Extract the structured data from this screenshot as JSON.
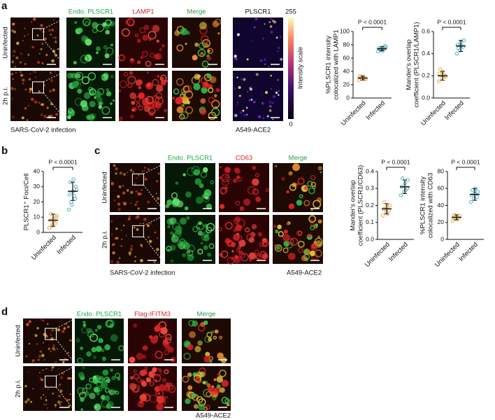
{
  "chart_data": [
    {
      "type": "dot",
      "ylabel": [
        "%PLSCR1 intensity",
        "colocalized with LAMP1"
      ],
      "categories": [
        "Uninfected",
        "Infected"
      ],
      "colors": [
        "#e8a33c",
        "#3ea9b9"
      ],
      "values": [
        30,
        74
      ],
      "errors": [
        3,
        3
      ],
      "points": [
        [
          27,
          29,
          30,
          31,
          32,
          28,
          33,
          30
        ],
        [
          70,
          72,
          74,
          75,
          76,
          78,
          73,
          71,
          77
        ]
      ],
      "annotation": "P < 0.0001",
      "ylim": [
        0,
        100
      ],
      "yticks": [
        0,
        20,
        40,
        60,
        80,
        100
      ]
    },
    {
      "type": "dot",
      "ylabel": [
        "Mander's overlap",
        "coefficient (PLSCR1/LAMP1)"
      ],
      "categories": [
        "Uninfected",
        "Infected"
      ],
      "colors": [
        "#e8a33c",
        "#3ea9b9"
      ],
      "values": [
        0.2,
        0.47
      ],
      "errors": [
        0.04,
        0.05
      ],
      "points": [
        [
          0.15,
          0.18,
          0.2,
          0.22,
          0.24,
          0.19,
          0.26,
          0.21
        ],
        [
          0.4,
          0.43,
          0.46,
          0.48,
          0.5,
          0.52,
          0.45,
          0.47
        ]
      ],
      "annotation": "P < 0.0001",
      "ylim": [
        0,
        0.6
      ],
      "yticks": [
        {
          "value": 0,
          "label": "0.0"
        },
        0.2,
        0.4,
        0.6
      ]
    },
    {
      "type": "dot",
      "ylabel": [
        "PLSCR1⁺ Foci/Cell"
      ],
      "categories": [
        "Uninfected",
        "Infected"
      ],
      "colors": [
        "#e8a33c",
        "#3ea9b9"
      ],
      "values": [
        8,
        27
      ],
      "errors": [
        4,
        6
      ],
      "points": [
        [
          3,
          5,
          6,
          8,
          9,
          10,
          12,
          7,
          11,
          4
        ],
        [
          15,
          18,
          22,
          25,
          27,
          30,
          33,
          35,
          28,
          20,
          24
        ]
      ],
      "annotation": "P < 0.0001",
      "ylim": [
        0,
        40
      ],
      "yticks": [
        0,
        10,
        20,
        30,
        40
      ]
    },
    {
      "type": "dot",
      "ylabel": [
        "Mander's overlap",
        "coefficient (PLSCR1/CD63)"
      ],
      "categories": [
        "Uninfected",
        "Infected"
      ],
      "colors": [
        "#e8a33c",
        "#3ea9b9"
      ],
      "values": [
        0.18,
        0.31
      ],
      "errors": [
        0.03,
        0.04
      ],
      "points": [
        [
          0.14,
          0.16,
          0.17,
          0.18,
          0.19,
          0.2,
          0.22,
          0.15
        ],
        [
          0.26,
          0.28,
          0.3,
          0.31,
          0.33,
          0.35,
          0.36,
          0.29
        ]
      ],
      "annotation": "P < 0.0001",
      "ylim": [
        0,
        0.4
      ],
      "yticks": [
        {
          "value": 0,
          "label": "0.0"
        },
        0.1,
        0.2,
        0.3,
        0.4
      ]
    },
    {
      "type": "dot",
      "ylabel": [
        "%PLSCR1 intensity",
        "colocalized with CD63"
      ],
      "categories": [
        "Uninfected",
        "Infected"
      ],
      "colors": [
        "#e8a33c",
        "#3ea9b9"
      ],
      "values": [
        26,
        53
      ],
      "errors": [
        3,
        7
      ],
      "points": [
        [
          22,
          24,
          25,
          26,
          27,
          28,
          29,
          25
        ],
        [
          44,
          48,
          50,
          52,
          54,
          56,
          58,
          60
        ]
      ],
      "annotation": "P < 0.0001",
      "ylim": [
        0,
        80
      ],
      "yticks": [
        0,
        20,
        40,
        60,
        80
      ]
    }
  ],
  "figure": {
    "a": {
      "letter": "a",
      "headers": [
        "Endo. PLSCR1",
        "LAMP1",
        "Merge"
      ],
      "heatmap_header": "PLSCR1",
      "rows": [
        "Uninfected",
        "2h p.i."
      ],
      "scale_label": "Intensity scale",
      "scale_max": 255,
      "scale_min": 0,
      "infection": "SARS-CoV-2 infection",
      "cell_line": "A549-ACE2"
    },
    "b": {
      "letter": "b"
    },
    "c": {
      "letter": "c",
      "headers": [
        "Endo. PLSCR1",
        "CD63",
        "Merge"
      ],
      "rows": [
        "Uninfected",
        "2h p.i."
      ],
      "infection": "SARS-CoV-2 infection",
      "cell_line": "A549-ACE2"
    },
    "d": {
      "letter": "d",
      "headers": [
        "Endo. PLSCR1",
        "Flag-IFITM3",
        "Merge"
      ],
      "rows": [
        "Uninfected",
        "2h p.i."
      ],
      "cell_line": "A549-ACE2"
    }
  }
}
